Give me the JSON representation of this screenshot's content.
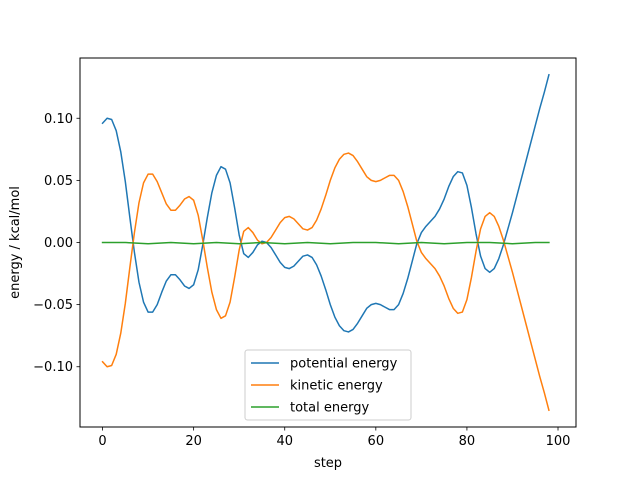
{
  "chart_data": {
    "type": "line",
    "title": "",
    "xlabel": "step",
    "ylabel": "energy / kcal/mol",
    "xlim": [
      -4.95,
      103.95
    ],
    "ylim": [
      -0.1485,
      0.1485
    ],
    "grid": false,
    "legend_position": "lower center",
    "x_ticks": [
      0,
      20,
      40,
      60,
      80,
      100
    ],
    "x_tick_labels": [
      "0",
      "20",
      "40",
      "60",
      "80",
      "100"
    ],
    "y_ticks": [
      -0.1,
      -0.05,
      0.0,
      0.05,
      0.1
    ],
    "y_tick_labels": [
      "−0.10",
      "−0.05",
      "0.00",
      "0.05",
      "0.10"
    ],
    "series": [
      {
        "name": "potential energy",
        "color": "#1f77b4",
        "points": [
          [
            0,
            0.096
          ],
          [
            1,
            0.1
          ],
          [
            2,
            0.099
          ],
          [
            3,
            0.09
          ],
          [
            4,
            0.073
          ],
          [
            5,
            0.049
          ],
          [
            6,
            0.02
          ],
          [
            7,
            -0.008
          ],
          [
            8,
            -0.032
          ],
          [
            9,
            -0.048
          ],
          [
            10,
            -0.056
          ],
          [
            11,
            -0.056
          ],
          [
            12,
            -0.05
          ],
          [
            13,
            -0.04
          ],
          [
            14,
            -0.031
          ],
          [
            15,
            -0.026
          ],
          [
            16,
            -0.026
          ],
          [
            17,
            -0.03
          ],
          [
            18,
            -0.035
          ],
          [
            19,
            -0.037
          ],
          [
            20,
            -0.034
          ],
          [
            21,
            -0.022
          ],
          [
            22,
            -0.002
          ],
          [
            23,
            0.02
          ],
          [
            24,
            0.04
          ],
          [
            25,
            0.054
          ],
          [
            26,
            0.061
          ],
          [
            27,
            0.059
          ],
          [
            28,
            0.048
          ],
          [
            29,
            0.028
          ],
          [
            30,
            0.006
          ],
          [
            31,
            -0.009
          ],
          [
            32,
            -0.012
          ],
          [
            33,
            -0.008
          ],
          [
            34,
            -0.002
          ],
          [
            35,
            0.001
          ],
          [
            36,
            0.0
          ],
          [
            37,
            -0.004
          ],
          [
            38,
            -0.01
          ],
          [
            39,
            -0.016
          ],
          [
            40,
            -0.02
          ],
          [
            41,
            -0.021
          ],
          [
            42,
            -0.019
          ],
          [
            43,
            -0.015
          ],
          [
            44,
            -0.011
          ],
          [
            45,
            -0.01
          ],
          [
            46,
            -0.012
          ],
          [
            47,
            -0.018
          ],
          [
            48,
            -0.027
          ],
          [
            49,
            -0.038
          ],
          [
            50,
            -0.05
          ],
          [
            51,
            -0.06
          ],
          [
            52,
            -0.067
          ],
          [
            53,
            -0.071
          ],
          [
            54,
            -0.072
          ],
          [
            55,
            -0.07
          ],
          [
            56,
            -0.065
          ],
          [
            57,
            -0.059
          ],
          [
            58,
            -0.053
          ],
          [
            59,
            -0.05
          ],
          [
            60,
            -0.049
          ],
          [
            61,
            -0.05
          ],
          [
            62,
            -0.052
          ],
          [
            63,
            -0.054
          ],
          [
            64,
            -0.054
          ],
          [
            65,
            -0.05
          ],
          [
            66,
            -0.041
          ],
          [
            67,
            -0.029
          ],
          [
            68,
            -0.015
          ],
          [
            69,
            -0.001
          ],
          [
            70,
            0.008
          ],
          [
            71,
            0.013
          ],
          [
            72,
            0.017
          ],
          [
            73,
            0.021
          ],
          [
            74,
            0.027
          ],
          [
            75,
            0.035
          ],
          [
            76,
            0.045
          ],
          [
            77,
            0.053
          ],
          [
            78,
            0.057
          ],
          [
            79,
            0.056
          ],
          [
            80,
            0.046
          ],
          [
            81,
            0.028
          ],
          [
            82,
            0.007
          ],
          [
            83,
            -0.011
          ],
          [
            84,
            -0.021
          ],
          [
            85,
            -0.024
          ],
          [
            86,
            -0.021
          ],
          [
            87,
            -0.013
          ],
          [
            88,
            -0.002
          ],
          [
            89,
            0.011
          ],
          [
            90,
            0.024
          ],
          [
            91,
            0.038
          ],
          [
            92,
            0.052
          ],
          [
            93,
            0.066
          ],
          [
            94,
            0.08
          ],
          [
            95,
            0.094
          ],
          [
            96,
            0.108
          ],
          [
            97,
            0.121
          ],
          [
            98,
            0.135
          ]
        ]
      },
      {
        "name": "kinetic energy",
        "color": "#ff7f0e",
        "points": [
          [
            0,
            -0.096
          ],
          [
            1,
            -0.1
          ],
          [
            2,
            -0.099
          ],
          [
            3,
            -0.09
          ],
          [
            4,
            -0.073
          ],
          [
            5,
            -0.049
          ],
          [
            6,
            -0.02
          ],
          [
            7,
            0.008
          ],
          [
            8,
            0.032
          ],
          [
            9,
            0.048
          ],
          [
            10,
            0.055
          ],
          [
            11,
            0.055
          ],
          [
            12,
            0.049
          ],
          [
            13,
            0.04
          ],
          [
            14,
            0.031
          ],
          [
            15,
            0.026
          ],
          [
            16,
            0.026
          ],
          [
            17,
            0.03
          ],
          [
            18,
            0.035
          ],
          [
            19,
            0.037
          ],
          [
            20,
            0.034
          ],
          [
            21,
            0.022
          ],
          [
            22,
            0.002
          ],
          [
            23,
            -0.02
          ],
          [
            24,
            -0.04
          ],
          [
            25,
            -0.054
          ],
          [
            26,
            -0.061
          ],
          [
            27,
            -0.059
          ],
          [
            28,
            -0.048
          ],
          [
            29,
            -0.028
          ],
          [
            30,
            -0.006
          ],
          [
            31,
            0.009
          ],
          [
            32,
            0.012
          ],
          [
            33,
            0.008
          ],
          [
            34,
            0.002
          ],
          [
            35,
            -0.001
          ],
          [
            36,
            0.0
          ],
          [
            37,
            0.004
          ],
          [
            38,
            0.01
          ],
          [
            39,
            0.016
          ],
          [
            40,
            0.02
          ],
          [
            41,
            0.021
          ],
          [
            42,
            0.019
          ],
          [
            43,
            0.015
          ],
          [
            44,
            0.011
          ],
          [
            45,
            0.01
          ],
          [
            46,
            0.012
          ],
          [
            47,
            0.018
          ],
          [
            48,
            0.027
          ],
          [
            49,
            0.038
          ],
          [
            50,
            0.05
          ],
          [
            51,
            0.06
          ],
          [
            52,
            0.067
          ],
          [
            53,
            0.071
          ],
          [
            54,
            0.072
          ],
          [
            55,
            0.07
          ],
          [
            56,
            0.065
          ],
          [
            57,
            0.059
          ],
          [
            58,
            0.053
          ],
          [
            59,
            0.05
          ],
          [
            60,
            0.049
          ],
          [
            61,
            0.05
          ],
          [
            62,
            0.052
          ],
          [
            63,
            0.054
          ],
          [
            64,
            0.054
          ],
          [
            65,
            0.05
          ],
          [
            66,
            0.041
          ],
          [
            67,
            0.029
          ],
          [
            68,
            0.015
          ],
          [
            69,
            0.001
          ],
          [
            70,
            -0.008
          ],
          [
            71,
            -0.013
          ],
          [
            72,
            -0.017
          ],
          [
            73,
            -0.021
          ],
          [
            74,
            -0.027
          ],
          [
            75,
            -0.035
          ],
          [
            76,
            -0.045
          ],
          [
            77,
            -0.053
          ],
          [
            78,
            -0.057
          ],
          [
            79,
            -0.056
          ],
          [
            80,
            -0.046
          ],
          [
            81,
            -0.028
          ],
          [
            82,
            -0.007
          ],
          [
            83,
            0.011
          ],
          [
            84,
            0.021
          ],
          [
            85,
            0.024
          ],
          [
            86,
            0.021
          ],
          [
            87,
            0.013
          ],
          [
            88,
            0.002
          ],
          [
            89,
            -0.011
          ],
          [
            90,
            -0.024
          ],
          [
            91,
            -0.038
          ],
          [
            92,
            -0.052
          ],
          [
            93,
            -0.066
          ],
          [
            94,
            -0.08
          ],
          [
            95,
            -0.094
          ],
          [
            96,
            -0.108
          ],
          [
            97,
            -0.121
          ],
          [
            98,
            -0.135
          ]
        ]
      },
      {
        "name": "total energy",
        "color": "#2ca02c",
        "points": [
          [
            0,
            0.0
          ],
          [
            5,
            0.0
          ],
          [
            10,
            -0.001
          ],
          [
            15,
            0.0
          ],
          [
            20,
            -0.001
          ],
          [
            25,
            0.0
          ],
          [
            30,
            -0.001
          ],
          [
            35,
            0.0
          ],
          [
            40,
            -0.001
          ],
          [
            45,
            0.0
          ],
          [
            50,
            -0.001
          ],
          [
            55,
            0.0
          ],
          [
            60,
            0.0
          ],
          [
            65,
            -0.001
          ],
          [
            70,
            0.0
          ],
          [
            75,
            -0.001
          ],
          [
            80,
            0.0
          ],
          [
            85,
            0.0
          ],
          [
            90,
            -0.001
          ],
          [
            95,
            0.0
          ],
          [
            98,
            0.0
          ]
        ]
      }
    ]
  }
}
